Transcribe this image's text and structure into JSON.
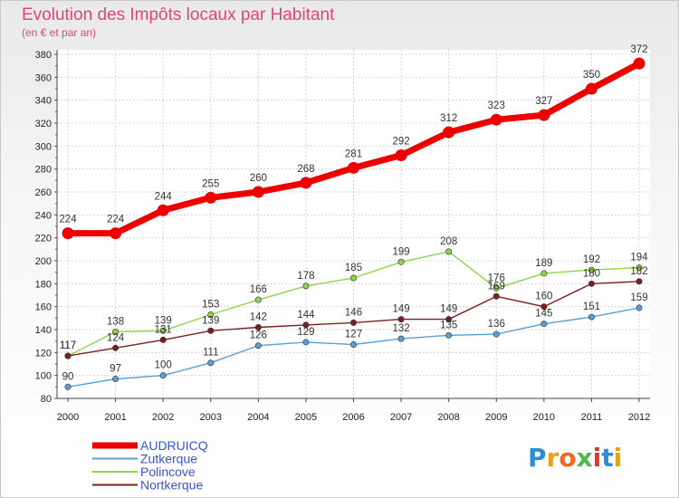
{
  "chart_data": {
    "type": "line",
    "title": "Evolution des Impôts locaux par Habitant",
    "subtitle": "(en € et par an)",
    "x": [
      "2000",
      "2001",
      "2002",
      "2003",
      "2004",
      "2005",
      "2006",
      "2007",
      "2008",
      "2009",
      "2010",
      "2011",
      "2012"
    ],
    "ylim": [
      80,
      380
    ],
    "yticks": [
      80,
      100,
      120,
      140,
      160,
      180,
      200,
      220,
      240,
      260,
      280,
      300,
      320,
      340,
      360,
      380
    ],
    "grid": true,
    "legend_position": "bottom-left",
    "series": [
      {
        "name": "AUDRUICQ",
        "color": "#ee0000",
        "values": [
          224,
          224,
          244,
          255,
          260,
          268,
          281,
          292,
          312,
          323,
          327,
          350,
          372
        ],
        "labels": [
          "224",
          "224",
          "244",
          "255",
          "260",
          "268",
          "281",
          "292",
          "312",
          "323",
          "327",
          "350",
          "372"
        ]
      },
      {
        "name": "Zutkerque",
        "color": "#5a9fd4",
        "values": [
          90,
          97,
          100,
          111,
          126,
          129,
          127,
          132,
          135,
          136,
          145,
          151,
          159
        ],
        "labels": [
          "90",
          "97",
          "100",
          "111",
          "126",
          "129",
          "127",
          "132",
          "135",
          "136",
          "145",
          "151",
          "159"
        ]
      },
      {
        "name": "Polincove",
        "color": "#8cd44a",
        "values": [
          117,
          138,
          139,
          153,
          166,
          178,
          185,
          199,
          208,
          176,
          189,
          192,
          194
        ],
        "labels": [
          "117",
          "138",
          "139",
          "153",
          "166",
          "178",
          "185",
          "199",
          "208",
          "176",
          "189",
          "192",
          "194"
        ]
      },
      {
        "name": "Nortkerque",
        "color": "#7a1f1f",
        "values": [
          117,
          124,
          131,
          139,
          142,
          144,
          146,
          149,
          149,
          169,
          160,
          180,
          182
        ],
        "labels": [
          "117",
          "124",
          "131",
          "139",
          "142",
          "144",
          "146",
          "149",
          "149",
          "169",
          "160",
          "180",
          "182"
        ]
      }
    ]
  },
  "logo": {
    "text": "Proxiti"
  }
}
